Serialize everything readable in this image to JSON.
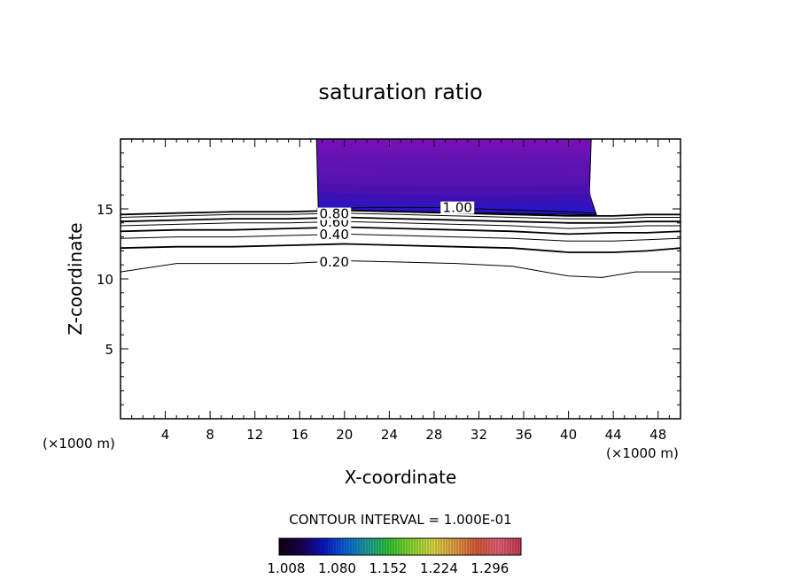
{
  "chart_data": {
    "type": "contour",
    "title": "saturation ratio",
    "xlabel": "X-coordinate",
    "ylabel": "Z-coordinate",
    "x_unit": "(×1000 m)",
    "y_unit": "(×1000 m)",
    "xlim": [
      0,
      50
    ],
    "ylim": [
      0,
      20
    ],
    "x_ticks": [
      4,
      8,
      12,
      16,
      20,
      24,
      28,
      32,
      36,
      40,
      44,
      48
    ],
    "y_ticks": [
      5,
      10,
      15
    ],
    "contour_interval_label": "CONTOUR INTERVAL = 1.000E-01",
    "contour_lines": [
      {
        "level": 0.2,
        "label": "0.20",
        "label_x": 17.5,
        "bold": false,
        "points": [
          [
            0,
            10.5
          ],
          [
            5,
            11.1
          ],
          [
            10,
            11.1
          ],
          [
            15,
            11.1
          ],
          [
            20,
            11.3
          ],
          [
            25,
            11.2
          ],
          [
            30,
            11.1
          ],
          [
            35,
            10.9
          ],
          [
            40,
            10.2
          ],
          [
            43,
            10.1
          ],
          [
            46,
            10.5
          ],
          [
            50,
            10.5
          ]
        ]
      },
      {
        "level": 0.3,
        "label": "",
        "bold": true,
        "points": [
          [
            0,
            12.2
          ],
          [
            5,
            12.3
          ],
          [
            10,
            12.3
          ],
          [
            15,
            12.4
          ],
          [
            20,
            12.5
          ],
          [
            25,
            12.4
          ],
          [
            30,
            12.3
          ],
          [
            35,
            12.2
          ],
          [
            40,
            11.9
          ],
          [
            44,
            11.9
          ],
          [
            47,
            12.0
          ],
          [
            50,
            12.2
          ]
        ]
      },
      {
        "level": 0.4,
        "label": "0.40",
        "label_x": 17.5,
        "bold": false,
        "points": [
          [
            0,
            12.9
          ],
          [
            5,
            13.0
          ],
          [
            10,
            13.0
          ],
          [
            15,
            13.1
          ],
          [
            20,
            13.2
          ],
          [
            25,
            13.1
          ],
          [
            30,
            13.0
          ],
          [
            35,
            12.9
          ],
          [
            40,
            12.7
          ],
          [
            44,
            12.7
          ],
          [
            47,
            12.8
          ],
          [
            50,
            12.9
          ]
        ]
      },
      {
        "level": 0.5,
        "label": "",
        "bold": true,
        "points": [
          [
            0,
            13.4
          ],
          [
            5,
            13.5
          ],
          [
            10,
            13.5
          ],
          [
            15,
            13.6
          ],
          [
            20,
            13.7
          ],
          [
            25,
            13.6
          ],
          [
            30,
            13.5
          ],
          [
            35,
            13.4
          ],
          [
            40,
            13.2
          ],
          [
            44,
            13.3
          ],
          [
            47,
            13.3
          ],
          [
            50,
            13.4
          ]
        ]
      },
      {
        "level": 0.6,
        "label": "0.60",
        "label_x": 17.5,
        "bold": false,
        "points": [
          [
            0,
            13.8
          ],
          [
            5,
            13.9
          ],
          [
            10,
            14.0
          ],
          [
            15,
            14.0
          ],
          [
            20,
            14.1
          ],
          [
            25,
            14.0
          ],
          [
            30,
            13.9
          ],
          [
            35,
            13.8
          ],
          [
            40,
            13.6
          ],
          [
            44,
            13.7
          ],
          [
            47,
            13.8
          ],
          [
            50,
            13.8
          ]
        ]
      },
      {
        "level": 0.7,
        "label": "",
        "bold": true,
        "points": [
          [
            0,
            14.1
          ],
          [
            5,
            14.2
          ],
          [
            10,
            14.3
          ],
          [
            15,
            14.3
          ],
          [
            20,
            14.4
          ],
          [
            25,
            14.3
          ],
          [
            30,
            14.2
          ],
          [
            35,
            14.1
          ],
          [
            40,
            14.0
          ],
          [
            44,
            14.0
          ],
          [
            47,
            14.1
          ],
          [
            50,
            14.1
          ]
        ]
      },
      {
        "level": 0.8,
        "label": "0.80",
        "label_x": 17.5,
        "bold": false,
        "points": [
          [
            0,
            14.4
          ],
          [
            5,
            14.5
          ],
          [
            10,
            14.6
          ],
          [
            15,
            14.6
          ],
          [
            20,
            14.7
          ],
          [
            25,
            14.6
          ],
          [
            30,
            14.5
          ],
          [
            35,
            14.4
          ],
          [
            40,
            14.3
          ],
          [
            44,
            14.3
          ],
          [
            47,
            14.4
          ],
          [
            50,
            14.4
          ]
        ]
      },
      {
        "level": 0.9,
        "label": "",
        "bold": true,
        "points": [
          [
            0,
            14.6
          ],
          [
            5,
            14.7
          ],
          [
            10,
            14.8
          ],
          [
            15,
            14.8
          ],
          [
            20,
            14.9
          ],
          [
            25,
            14.8
          ],
          [
            30,
            14.7
          ],
          [
            35,
            14.6
          ],
          [
            40,
            14.5
          ],
          [
            44,
            14.5
          ],
          [
            47,
            14.6
          ],
          [
            50,
            14.6
          ]
        ]
      },
      {
        "level": 1.0,
        "label": "1.00",
        "label_x": 28.5,
        "bold": false,
        "points": [
          [
            17.5,
            15.0
          ],
          [
            22,
            15.1
          ],
          [
            28,
            15.1
          ],
          [
            32,
            15.0
          ],
          [
            36,
            14.9
          ],
          [
            40,
            14.8
          ],
          [
            42.5,
            14.7
          ]
        ]
      }
    ],
    "filled_region": {
      "x_range": [
        17.5,
        42.5
      ],
      "z_range": [
        14.7,
        20
      ],
      "bands": [
        {
          "level": 1.008,
          "color": "#7a0fb8"
        },
        {
          "level": 1.02,
          "color": "#6a12b4"
        },
        {
          "level": 1.04,
          "color": "#5514b0"
        },
        {
          "level": 1.06,
          "color": "#4212ae"
        },
        {
          "level": 1.08,
          "color": "#2c12b8"
        },
        {
          "level": 1.1,
          "color": "#1a18d0"
        }
      ]
    },
    "colorbar": {
      "tick_labels": [
        "1.008",
        "1.080",
        "1.152",
        "1.224",
        "1.296"
      ],
      "range": [
        1.008,
        1.35
      ],
      "colors": [
        "#140014",
        "#1a0050",
        "#0a14c8",
        "#0a64dc",
        "#1ea0a0",
        "#32c832",
        "#8cdc32",
        "#dcdc46",
        "#e6a046",
        "#dc5a3c",
        "#e6647a",
        "#c83c50"
      ]
    }
  }
}
